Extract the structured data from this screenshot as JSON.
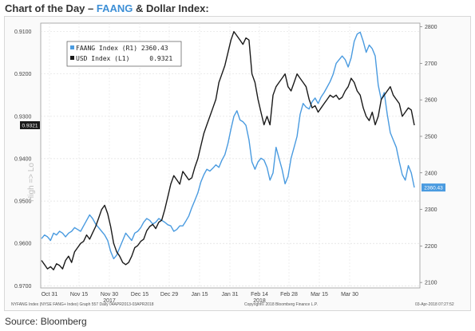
{
  "header": {
    "title_prefix": "Chart of the Day – ",
    "title_highlight": "FAANG",
    "title_suffix": " & Dollar Index:",
    "highlight_color": "#3d8fd6"
  },
  "source": "Source: Bloomberg",
  "footer": {
    "left": "NYFANG Index (NYSE FANG+ Index) Graph 557  Daily 04APR2013-03APR2018",
    "center": "Copyright© 2018 Bloomberg Finance L.P.",
    "right": "03-Apr-2018 07:27:52"
  },
  "side_label": "High => Lo",
  "chart_data": {
    "type": "line",
    "x_tick_labels": [
      "Oct 31",
      "Nov 15",
      "Nov 30",
      "Dec 15",
      "Dec 29",
      "Jan 15",
      "Jan 31",
      "Feb 14",
      "Feb 28",
      "Mar 15",
      "Mar 30"
    ],
    "x_year_labels": [
      "2017",
      "2018"
    ],
    "left_axis": {
      "ticks": [
        "0.9100",
        "0.9200",
        "0.9300",
        "0.9400",
        "0.9500",
        "0.9600",
        "0.9700"
      ],
      "inverted": true,
      "range": [
        0.908,
        0.9705
      ]
    },
    "right_axis": {
      "ticks": [
        "2800",
        "2700",
        "2600",
        "2500",
        "2400",
        "2300",
        "2200",
        "2100"
      ],
      "range": [
        2085,
        2810
      ]
    },
    "series": [
      {
        "name": "FAANG Index (R1)",
        "last_value": "2360.43",
        "axis": "right",
        "color": "#4a9be0",
        "values": [
          2220,
          2230,
          2225,
          2215,
          2235,
          2230,
          2240,
          2235,
          2225,
          2235,
          2240,
          2250,
          2245,
          2240,
          2255,
          2270,
          2285,
          2275,
          2260,
          2250,
          2240,
          2230,
          2215,
          2185,
          2165,
          2175,
          2195,
          2215,
          2235,
          2225,
          2215,
          2235,
          2240,
          2250,
          2265,
          2275,
          2270,
          2260,
          2265,
          2275,
          2270,
          2265,
          2258,
          2255,
          2240,
          2245,
          2255,
          2255,
          2268,
          2282,
          2305,
          2325,
          2345,
          2375,
          2395,
          2410,
          2405,
          2413,
          2422,
          2415,
          2435,
          2450,
          2480,
          2520,
          2555,
          2570,
          2545,
          2540,
          2530,
          2490,
          2430,
          2410,
          2430,
          2440,
          2435,
          2415,
          2380,
          2400,
          2470,
          2440,
          2410,
          2370,
          2390,
          2440,
          2470,
          2500,
          2560,
          2590,
          2580,
          2575,
          2595,
          2605,
          2590,
          2608,
          2620,
          2635,
          2650,
          2670,
          2700,
          2710,
          2720,
          2710,
          2690,
          2715,
          2760,
          2780,
          2785,
          2760,
          2730,
          2750,
          2740,
          2720,
          2640,
          2600,
          2620,
          2560,
          2510,
          2490,
          2470,
          2430,
          2395,
          2380,
          2420,
          2400,
          2360
        ]
      },
      {
        "name": "USD Index (L1)",
        "last_value": "0.9321",
        "axis": "left",
        "color": "#1a1a1a",
        "values": [
          0.964,
          0.965,
          0.966,
          0.9655,
          0.9662,
          0.9648,
          0.9652,
          0.966,
          0.964,
          0.963,
          0.9645,
          0.962,
          0.961,
          0.96,
          0.9595,
          0.958,
          0.959,
          0.9575,
          0.956,
          0.954,
          0.952,
          0.951,
          0.953,
          0.956,
          0.96,
          0.962,
          0.963,
          0.9645,
          0.965,
          0.9645,
          0.963,
          0.961,
          0.9605,
          0.9595,
          0.959,
          0.957,
          0.956,
          0.9555,
          0.9565,
          0.955,
          0.9545,
          0.952,
          0.949,
          0.946,
          0.944,
          0.945,
          0.946,
          0.943,
          0.944,
          0.945,
          0.9445,
          0.942,
          0.94,
          0.937,
          0.934,
          0.932,
          0.93,
          0.928,
          0.926,
          0.922,
          0.92,
          0.918,
          0.915,
          0.912,
          0.91,
          0.911,
          0.912,
          0.913,
          0.9115,
          0.912,
          0.92,
          0.922,
          0.926,
          0.929,
          0.932,
          0.93,
          0.932,
          0.925,
          0.923,
          0.922,
          0.921,
          0.92,
          0.923,
          0.924,
          0.922,
          0.92,
          0.921,
          0.922,
          0.923,
          0.926,
          0.928,
          0.9275,
          0.929,
          0.928,
          0.927,
          0.926,
          0.925,
          0.9255,
          0.925,
          0.926,
          0.9255,
          0.924,
          0.923,
          0.921,
          0.922,
          0.924,
          0.925,
          0.928,
          0.93,
          0.931,
          0.929,
          0.932,
          0.93,
          0.926,
          0.925,
          0.924,
          0.923,
          0.925,
          0.926,
          0.927,
          0.93,
          0.929,
          0.928,
          0.9285,
          0.9321
        ]
      }
    ]
  }
}
